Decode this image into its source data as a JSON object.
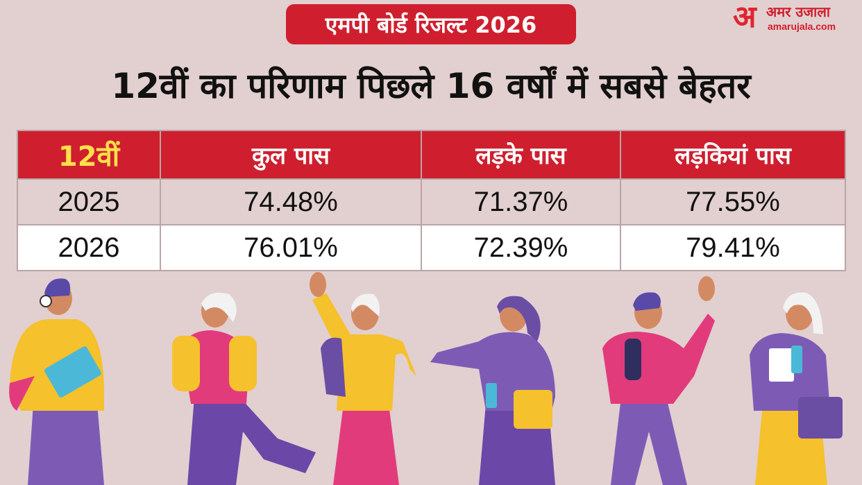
{
  "badge": "एमपी बोर्ड रिजल्ट 2026",
  "logo": {
    "mark": "अ",
    "hindi": "अमर उजाला",
    "english": "amarujala.com"
  },
  "headline": "12वीं का परिणाम पिछले 16 वर्षों में सबसे बेहतर",
  "table": {
    "headers": [
      "12वीं",
      "कुल पास",
      "लड़के पास",
      "लड़कियां पास"
    ],
    "rows": [
      {
        "year": "2025",
        "total": "74.48%",
        "boys": "71.37%",
        "girls": "77.55%"
      },
      {
        "year": "2026",
        "total": "76.01%",
        "boys": "72.39%",
        "girls": "79.41%"
      }
    ]
  },
  "colors": {
    "background": "#e2cfd0",
    "accent_red": "#cf1f2e",
    "header_highlight": "#ffe04a"
  }
}
